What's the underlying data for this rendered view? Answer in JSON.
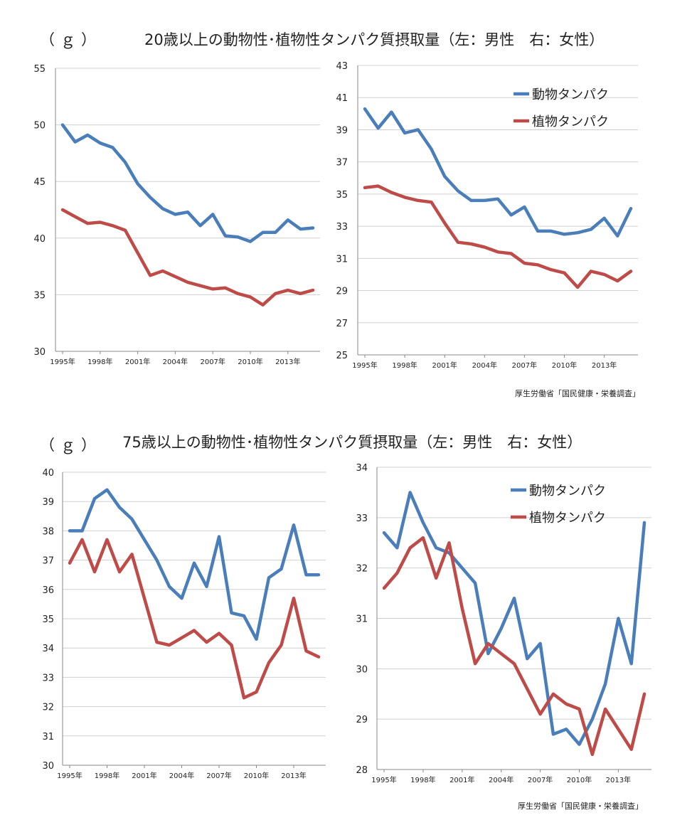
{
  "panels": [
    {
      "unit": "（ｇ）",
      "title": "20歳以上の動物性･植物性タンパク質摂取量（左：男性　右：女性）",
      "source": "厚生労働省「国民健康・栄養調査」",
      "colors": {
        "animal": "#4a7ebb",
        "plant": "#be4b48"
      }
    },
    {
      "unit": "（ｇ）",
      "title": "75歳以上の動物性･植物性タンパク質摂取量（左：男性　右：女性）",
      "source": "厚生労働省「国民健康・栄養調査」",
      "colors": {
        "animal": "#4a7ebb",
        "plant": "#be4b48"
      }
    }
  ],
  "chart_data": [
    {
      "type": "line",
      "title": "",
      "x": [
        1995,
        1996,
        1997,
        1998,
        1999,
        2000,
        2001,
        2002,
        2003,
        2004,
        2005,
        2006,
        2007,
        2008,
        2009,
        2010,
        2011,
        2012,
        2013,
        2014,
        2015
      ],
      "tick_labels": [
        "1995年",
        "1998年",
        "2001年",
        "2004年",
        "2007年",
        "2010年",
        "2013年"
      ],
      "ylim": [
        30,
        55
      ],
      "yticks": [
        30,
        35,
        40,
        45,
        50,
        55
      ],
      "grid": true,
      "legend": "none",
      "series": [
        {
          "name": "動物タンパク",
          "color": "#4a7ebb",
          "values": [
            50.0,
            48.5,
            49.1,
            48.4,
            48.0,
            46.7,
            44.8,
            43.6,
            42.6,
            42.1,
            42.3,
            41.1,
            42.1,
            40.2,
            40.1,
            39.7,
            40.5,
            40.5,
            41.6,
            40.8,
            40.9
          ]
        },
        {
          "name": "植物タンパク",
          "color": "#be4b48",
          "values": [
            42.5,
            41.9,
            41.3,
            41.4,
            41.1,
            40.7,
            38.7,
            36.7,
            37.1,
            36.6,
            36.1,
            35.8,
            35.5,
            35.6,
            35.1,
            34.8,
            34.1,
            35.1,
            35.4,
            35.1,
            35.4
          ]
        }
      ]
    },
    {
      "type": "line",
      "title": "",
      "x": [
        1995,
        1996,
        1997,
        1998,
        1999,
        2000,
        2001,
        2002,
        2003,
        2004,
        2005,
        2006,
        2007,
        2008,
        2009,
        2010,
        2011,
        2012,
        2013,
        2014,
        2015
      ],
      "tick_labels": [
        "1995年",
        "1998年",
        "2001年",
        "2004年",
        "2007年",
        "2010年",
        "2013年"
      ],
      "ylim": [
        25,
        43
      ],
      "yticks": [
        25,
        27,
        29,
        31,
        33,
        35,
        37,
        39,
        41,
        43
      ],
      "grid": true,
      "legend": "top-right",
      "series": [
        {
          "name": "動物タンパク",
          "color": "#4a7ebb",
          "values": [
            40.3,
            39.1,
            40.1,
            38.8,
            39.0,
            37.8,
            36.1,
            35.2,
            34.6,
            34.6,
            34.7,
            33.7,
            34.2,
            32.7,
            32.7,
            32.5,
            32.6,
            32.8,
            33.5,
            32.4,
            34.1
          ]
        },
        {
          "name": "植物タンパク",
          "color": "#be4b48",
          "values": [
            35.4,
            35.5,
            35.1,
            34.8,
            34.6,
            34.5,
            33.2,
            32.0,
            31.9,
            31.7,
            31.4,
            31.3,
            30.7,
            30.6,
            30.3,
            30.1,
            29.2,
            30.2,
            30.0,
            29.6,
            30.2
          ]
        }
      ]
    },
    {
      "type": "line",
      "title": "",
      "x": [
        1995,
        1996,
        1997,
        1998,
        1999,
        2000,
        2001,
        2002,
        2003,
        2004,
        2005,
        2006,
        2007,
        2008,
        2009,
        2010,
        2011,
        2012,
        2013,
        2014,
        2015
      ],
      "tick_labels": [
        "1995年",
        "1998年",
        "2001年",
        "2004年",
        "2007年",
        "2010年",
        "2013年"
      ],
      "ylim": [
        30,
        40
      ],
      "yticks": [
        30,
        31,
        32,
        33,
        34,
        35,
        36,
        37,
        38,
        39,
        40
      ],
      "grid": true,
      "legend": "none",
      "series": [
        {
          "name": "動物タンパク",
          "color": "#4a7ebb",
          "values": [
            38.0,
            38.0,
            39.1,
            39.4,
            38.8,
            38.4,
            37.7,
            37.0,
            36.1,
            35.7,
            36.9,
            36.1,
            37.8,
            35.2,
            35.1,
            34.3,
            36.4,
            36.7,
            38.2,
            36.5,
            36.5
          ]
        },
        {
          "name": "植物タンパク",
          "color": "#be4b48",
          "values": [
            36.9,
            37.7,
            36.6,
            37.7,
            36.6,
            37.2,
            35.7,
            34.2,
            34.1,
            34.35,
            34.6,
            34.2,
            34.5,
            34.1,
            32.3,
            32.5,
            33.5,
            34.1,
            35.7,
            33.9,
            33.7
          ]
        }
      ]
    },
    {
      "type": "line",
      "title": "",
      "x": [
        1995,
        1996,
        1997,
        1998,
        1999,
        2000,
        2001,
        2002,
        2003,
        2004,
        2005,
        2006,
        2007,
        2008,
        2009,
        2010,
        2011,
        2012,
        2013,
        2014,
        2015
      ],
      "tick_labels": [
        "1995年",
        "1998年",
        "2001年",
        "2004年",
        "2007年",
        "2010年",
        "2013年"
      ],
      "ylim": [
        28,
        34
      ],
      "yticks": [
        28,
        29,
        30,
        31,
        32,
        33,
        34
      ],
      "grid": true,
      "legend": "top-right",
      "series": [
        {
          "name": "動物タンパク",
          "color": "#4a7ebb",
          "values": [
            32.7,
            32.4,
            33.5,
            32.9,
            32.4,
            32.3,
            32.0,
            31.7,
            30.3,
            30.8,
            31.4,
            30.2,
            30.5,
            28.7,
            28.8,
            28.5,
            29.0,
            29.7,
            31.0,
            30.1,
            32.9
          ]
        },
        {
          "name": "植物タンパク",
          "color": "#be4b48",
          "values": [
            31.6,
            31.9,
            32.4,
            32.6,
            31.8,
            32.5,
            31.2,
            30.1,
            30.5,
            30.3,
            30.1,
            29.6,
            29.1,
            29.5,
            29.3,
            29.2,
            28.3,
            29.2,
            28.8,
            28.4,
            29.5
          ]
        }
      ]
    }
  ]
}
